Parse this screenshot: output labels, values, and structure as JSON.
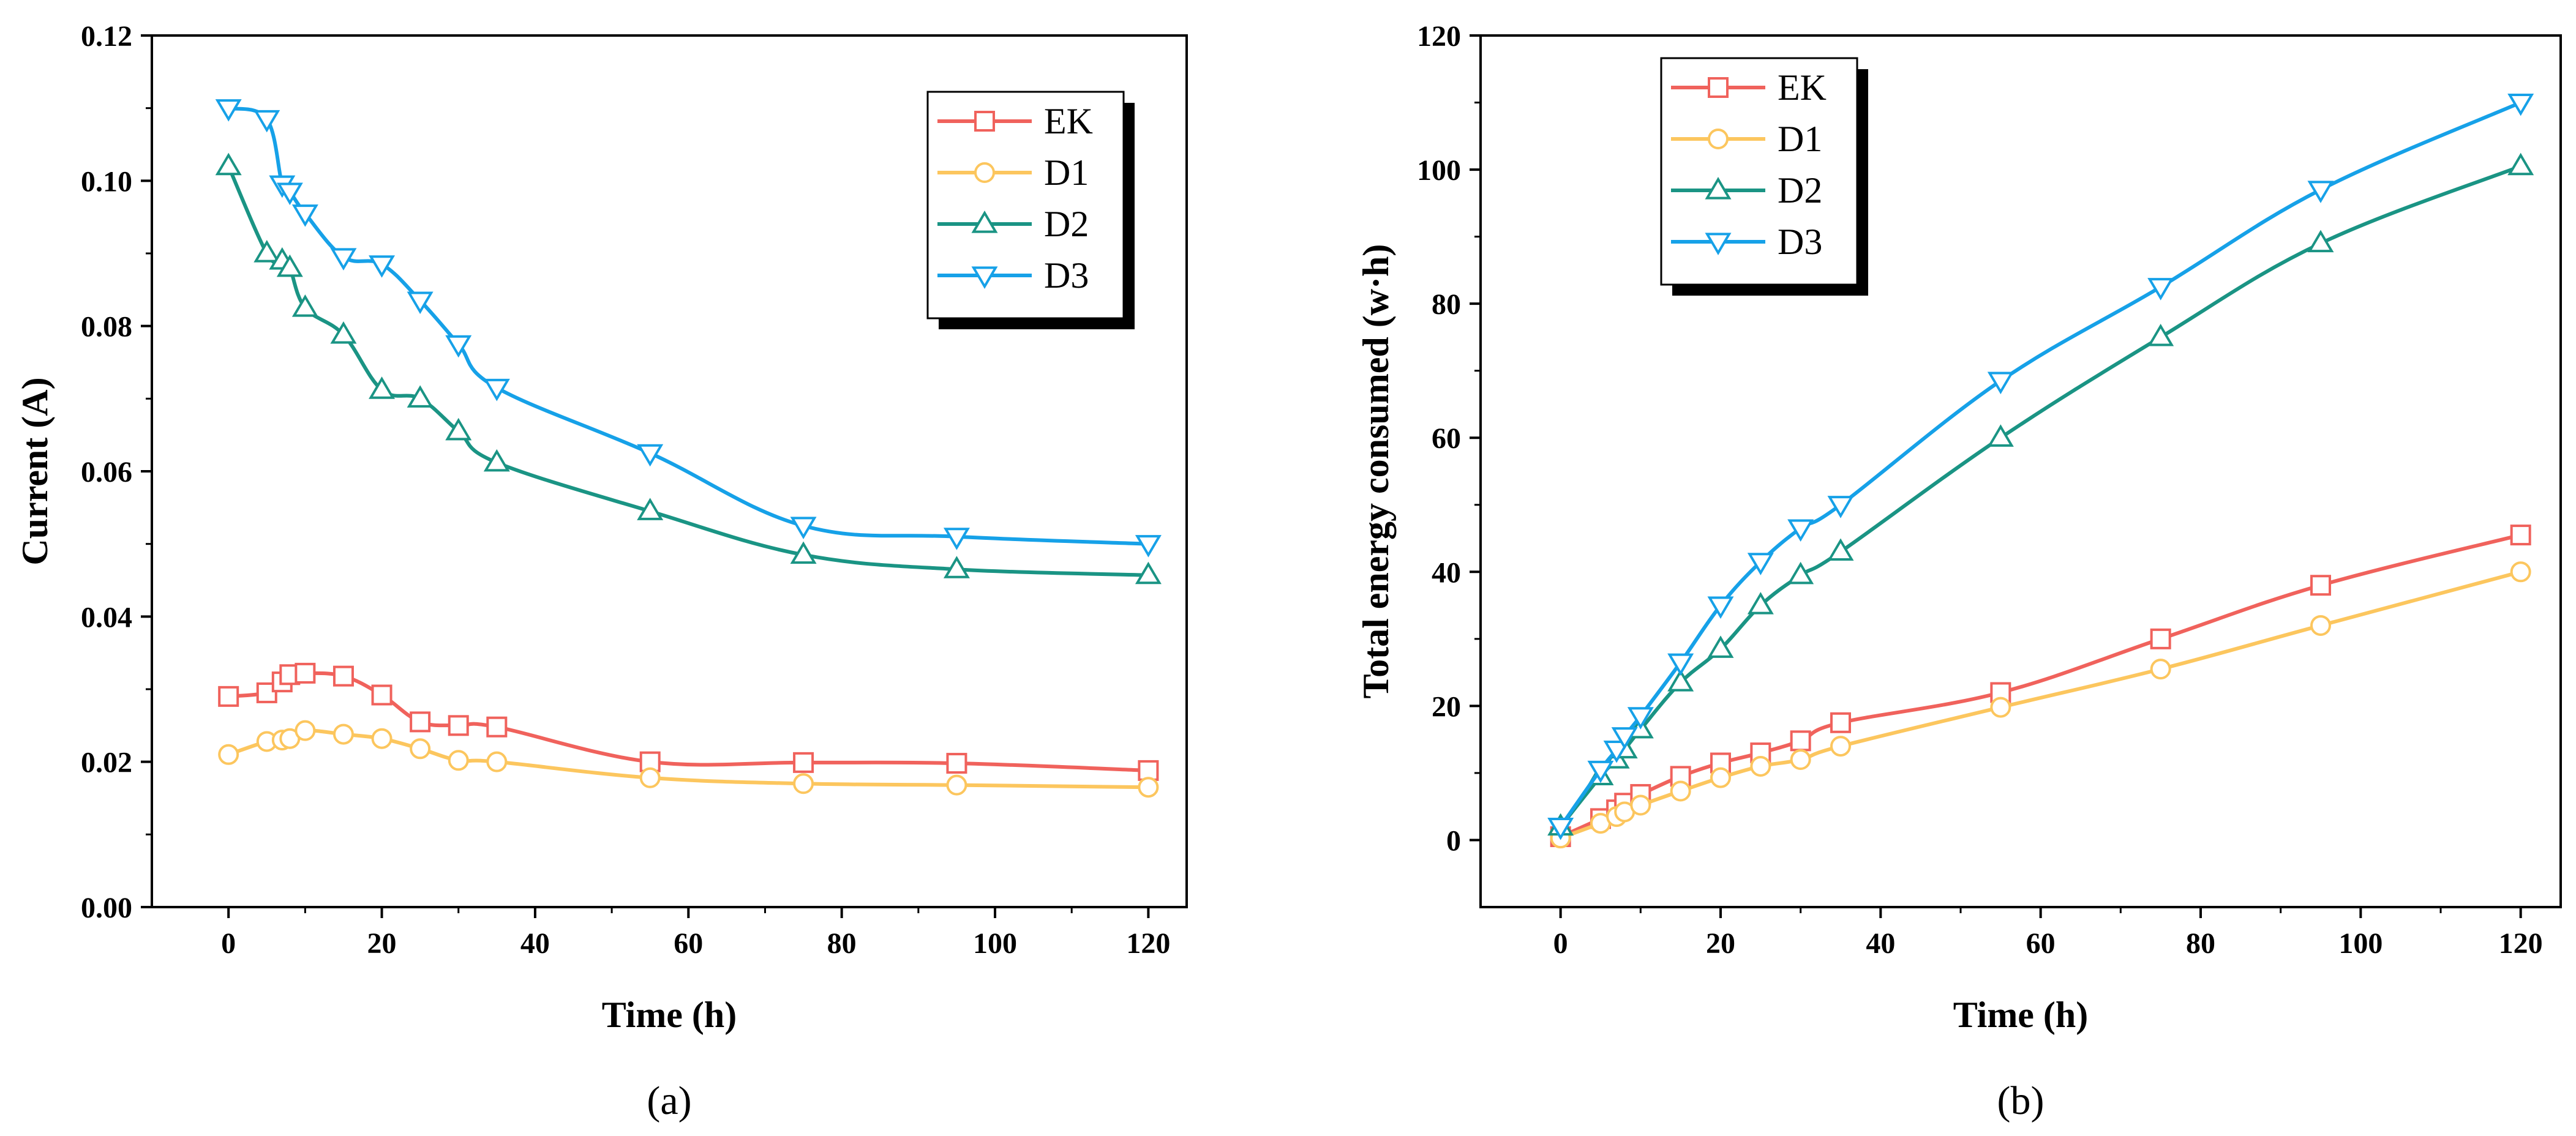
{
  "chart_data": [
    {
      "panel_label": "(a)",
      "type": "line",
      "xlabel": "Time (h)",
      "ylabel": "Current (A)",
      "xlim": [
        -10,
        125
      ],
      "ylim": [
        0.0,
        0.12
      ],
      "xticks": [
        0,
        20,
        40,
        60,
        80,
        100,
        120
      ],
      "xtick_labels": [
        "0",
        "20",
        "40",
        "60",
        "80",
        "100",
        "120"
      ],
      "yticks": [
        0.0,
        0.02,
        0.04,
        0.06,
        0.08,
        0.1,
        0.12
      ],
      "ytick_labels": [
        "0.00",
        "0.02",
        "0.04",
        "0.06",
        "0.08",
        "0.10",
        "0.12"
      ],
      "legend_position": "top-right",
      "series": [
        {
          "name": "EK",
          "color": "#f0625c",
          "marker": "square",
          "x": [
            0,
            5,
            7,
            8,
            10,
            15,
            20,
            25,
            30,
            35,
            55,
            75,
            95,
            120
          ],
          "y": [
            0.029,
            0.0295,
            0.031,
            0.032,
            0.0322,
            0.0318,
            0.0292,
            0.0255,
            0.025,
            0.0248,
            0.02,
            0.0199,
            0.0198,
            0.0188
          ]
        },
        {
          "name": "D1",
          "color": "#fcc65e",
          "marker": "circle",
          "x": [
            0,
            5,
            7,
            8,
            10,
            15,
            20,
            25,
            30,
            35,
            55,
            75,
            95,
            120
          ],
          "y": [
            0.021,
            0.0228,
            0.023,
            0.0232,
            0.0243,
            0.0238,
            0.0232,
            0.0218,
            0.0202,
            0.02,
            0.0178,
            0.017,
            0.0168,
            0.0165
          ]
        },
        {
          "name": "D2",
          "color": "#1a9484",
          "marker": "triangle-up",
          "x": [
            0,
            5,
            7,
            8,
            10,
            15,
            20,
            25,
            30,
            35,
            55,
            75,
            95,
            120
          ],
          "y": [
            0.102,
            0.09,
            0.089,
            0.088,
            0.0825,
            0.0788,
            0.0712,
            0.07,
            0.0655,
            0.0612,
            0.0545,
            0.0485,
            0.0465,
            0.0457
          ]
        },
        {
          "name": "D3",
          "color": "#16a1e8",
          "marker": "triangle-down",
          "x": [
            0,
            5,
            7,
            8,
            10,
            15,
            20,
            25,
            30,
            35,
            55,
            75,
            95,
            120
          ],
          "y": [
            0.11,
            0.1085,
            0.0995,
            0.0985,
            0.0955,
            0.0895,
            0.0885,
            0.0835,
            0.0775,
            0.0715,
            0.0625,
            0.0525,
            0.051,
            0.05
          ]
        }
      ]
    },
    {
      "panel_label": "(b)",
      "type": "line",
      "xlabel": "Time (h)",
      "ylabel": "Total energy consumed (w·h)",
      "xlim": [
        -10,
        125
      ],
      "ylim": [
        -10,
        120
      ],
      "xticks": [
        0,
        20,
        40,
        60,
        80,
        100,
        120
      ],
      "xtick_labels": [
        "0",
        "20",
        "40",
        "60",
        "80",
        "100",
        "120"
      ],
      "yticks": [
        0,
        20,
        40,
        60,
        80,
        100,
        120
      ],
      "ytick_labels": [
        "0",
        "20",
        "40",
        "60",
        "80",
        "100",
        "120"
      ],
      "legend_position": "top-left",
      "series": [
        {
          "name": "EK",
          "color": "#f0625c",
          "marker": "square",
          "x": [
            0,
            5,
            7,
            8,
            10,
            15,
            20,
            25,
            30,
            35,
            55,
            75,
            95,
            120
          ],
          "y": [
            0.5,
            3.2,
            4.5,
            5.5,
            6.8,
            9.5,
            11.5,
            13,
            14.8,
            17.5,
            22,
            30,
            38,
            45.5
          ]
        },
        {
          "name": "D1",
          "color": "#fcc65e",
          "marker": "circle",
          "x": [
            0,
            5,
            7,
            8,
            10,
            15,
            20,
            25,
            30,
            35,
            55,
            75,
            95,
            120
          ],
          "y": [
            0.3,
            2.5,
            3.5,
            4.2,
            5.2,
            7.3,
            9.3,
            11,
            12,
            14,
            19.8,
            25.5,
            32,
            40
          ]
        },
        {
          "name": "D2",
          "color": "#1a9484",
          "marker": "triangle-up",
          "x": [
            0,
            5,
            7,
            8,
            10,
            15,
            20,
            25,
            30,
            35,
            55,
            75,
            95,
            120
          ],
          "y": [
            2,
            9.5,
            12,
            13.5,
            16.5,
            23.5,
            28.5,
            35,
            39.5,
            43,
            60,
            75,
            89,
            100.5
          ]
        },
        {
          "name": "D3",
          "color": "#16a1e8",
          "marker": "triangle-down",
          "x": [
            0,
            5,
            7,
            8,
            10,
            15,
            20,
            25,
            30,
            35,
            55,
            75,
            95,
            120
          ],
          "y": [
            2,
            10.5,
            13.5,
            15.5,
            18.5,
            26.5,
            35,
            41.5,
            46.5,
            50,
            68.5,
            82.5,
            97,
            110
          ]
        }
      ]
    }
  ]
}
